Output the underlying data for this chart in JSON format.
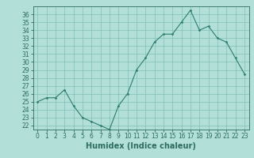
{
  "xlabel": "Humidex (Indice chaleur)",
  "ylabel": "",
  "x": [
    0,
    1,
    2,
    3,
    4,
    5,
    6,
    7,
    8,
    9,
    10,
    11,
    12,
    13,
    14,
    15,
    16,
    17,
    18,
    19,
    20,
    21,
    22,
    23
  ],
  "y": [
    25.0,
    25.5,
    25.5,
    26.5,
    24.5,
    23.0,
    22.5,
    22.0,
    21.5,
    24.5,
    26.0,
    29.0,
    30.5,
    32.5,
    33.5,
    33.5,
    35.0,
    36.5,
    34.0,
    34.5,
    33.0,
    32.5,
    30.5,
    28.5
  ],
  "line_color": "#2e7d6e",
  "marker": "D",
  "marker_size": 1.5,
  "line_width": 0.8,
  "bg_color": "#b2e0d8",
  "grid_color": "#80c0b8",
  "axes_bg": "#b2e0d8",
  "ylim": [
    21.5,
    37.0
  ],
  "xlim": [
    -0.5,
    23.5
  ],
  "yticks": [
    22,
    23,
    24,
    25,
    26,
    27,
    28,
    29,
    30,
    31,
    32,
    33,
    34,
    35,
    36
  ],
  "xtick_labels": [
    "0",
    "1",
    "2",
    "3",
    "4",
    "5",
    "6",
    "7",
    "8",
    "9",
    "10",
    "11",
    "12",
    "13",
    "14",
    "15",
    "16",
    "17",
    "18",
    "19",
    "20",
    "21",
    "22",
    "23"
  ],
  "tick_fontsize": 5.5,
  "xlabel_fontsize": 7,
  "tick_color": "#2e6b60",
  "spine_color": "#2e6b60"
}
